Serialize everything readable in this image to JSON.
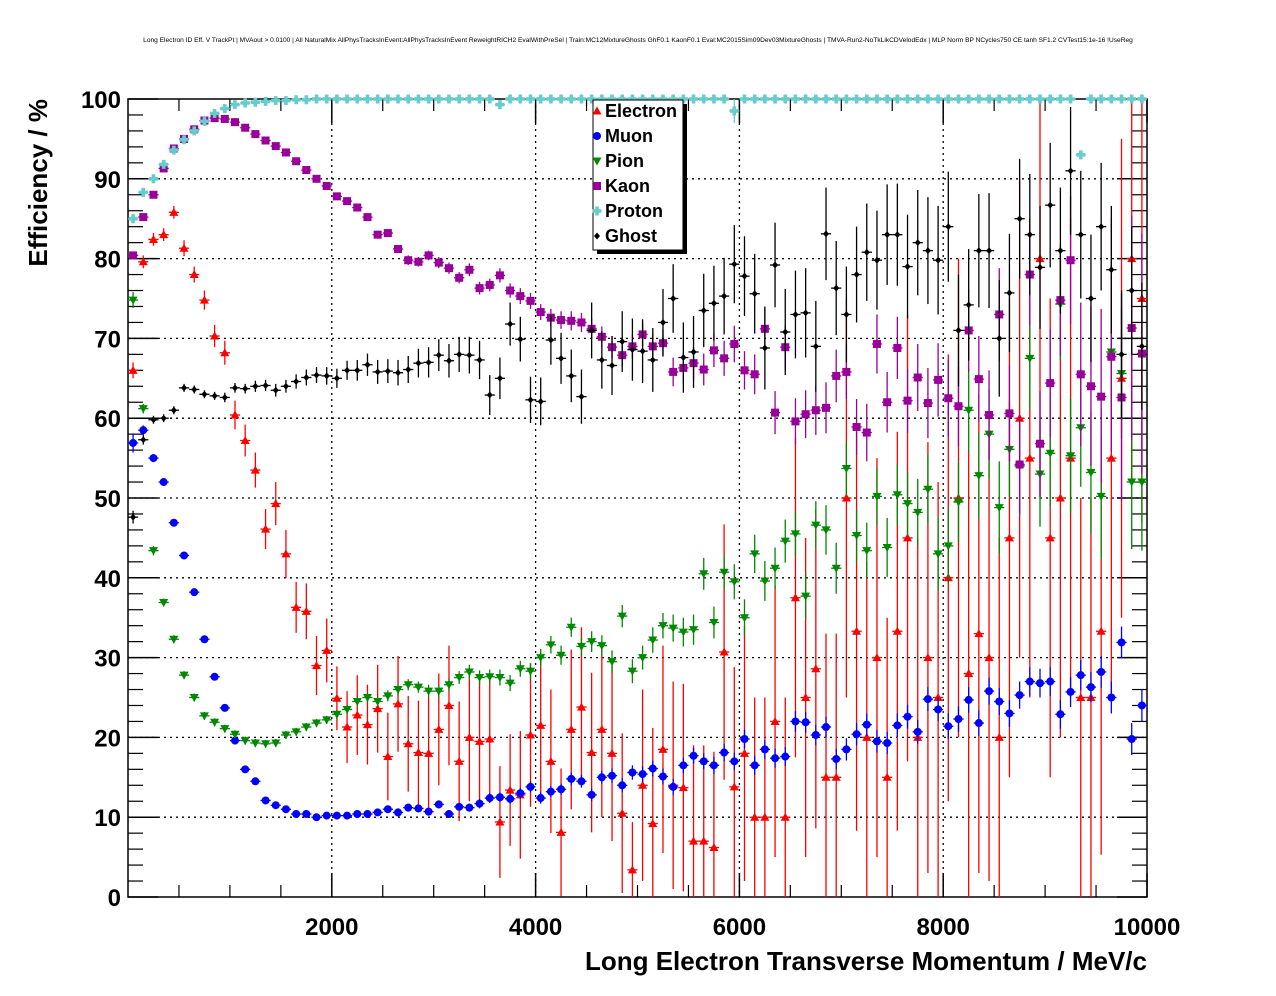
{
  "chart_data": {
    "type": "scatter",
    "title": "Long Electron ID Eff. V TrackPt | MVAout > 0.0100 | All NaturalMix AllPhysTracksInEvent:AllPhysTracksInEvent ReweightRICH2 EvalWithPreSel | Train:MC12MixtureGhosts GhF0.1 KaonF0.1 Eval:MC2015Sim09Dev03MixtureGhosts | TMVA-Run2-NoTkLikCDVelodEdx | MLP Norm BP NCycles750 CE tanh SF1.2 CVTest15:1e-16 !UseReg",
    "xlabel": "Long Electron Transverse Momentum / MeV/c",
    "ylabel": "Efficiency / %",
    "xlim": [
      0,
      10000
    ],
    "ylim": [
      0,
      100
    ],
    "xticks": [
      2000,
      4000,
      6000,
      8000,
      10000
    ],
    "xtick_labels": [
      "2000",
      "4000",
      "6000",
      "8000",
      "10000"
    ],
    "yticks": [
      0,
      10,
      20,
      30,
      40,
      50,
      60,
      70,
      80,
      90,
      100
    ],
    "ytick_labels": [
      "0",
      "10",
      "20",
      "30",
      "40",
      "50",
      "60",
      "70",
      "80",
      "90",
      "100"
    ],
    "grid": true,
    "legend_position": "top-center",
    "bin_width": 100,
    "x_start": 50,
    "series": [
      {
        "name": "Electron",
        "color": "#ff0000",
        "marker": "triangle-up",
        "values": [
          66,
          79.6,
          82.4,
          83,
          85.8,
          81.3,
          78,
          74.8,
          70.3,
          68.2,
          60.4,
          57.2,
          53.5,
          46.1,
          49.3,
          43,
          36.3,
          35.8,
          29,
          30.9,
          24.9,
          21.3,
          22.8,
          21.6,
          23.6,
          17.6,
          24.2,
          19.2,
          18.1,
          18,
          21,
          24,
          17,
          20,
          19.5,
          19.8,
          9.4,
          13.4,
          12.8,
          20.3,
          21.5,
          17,
          8.1,
          21,
          23.8,
          18.1,
          21,
          18,
          10.5,
          3.4,
          14,
          9.2,
          18.5,
          14,
          13.7,
          7,
          7,
          6.2,
          30.7,
          13.8,
          18,
          10,
          10,
          22,
          10,
          37.5,
          25,
          28.6,
          15,
          15,
          50,
          33.3,
          20,
          30,
          15,
          33.3,
          45,
          20,
          30,
          25,
          40,
          50,
          28,
          33,
          30,
          20,
          45,
          60,
          55,
          80,
          45,
          50,
          55,
          25,
          25,
          33.3,
          55,
          65,
          80,
          75
        ],
        "errors": [
          1,
          0.8,
          0.8,
          0.8,
          0.8,
          1,
          1,
          1.2,
          1.4,
          1.5,
          1.8,
          2,
          2.2,
          2.5,
          2.7,
          3,
          3.2,
          3.5,
          3.7,
          4,
          4,
          4.5,
          5,
          5,
          5.5,
          5.5,
          6,
          6,
          6.5,
          7,
          7,
          7.5,
          7.5,
          8,
          8,
          8,
          7,
          7,
          8,
          9,
          9,
          9,
          8,
          10,
          10,
          10,
          11,
          11,
          10,
          6,
          12,
          12,
          13,
          13,
          13,
          12,
          12,
          12,
          16,
          15,
          16,
          15,
          15,
          17,
          15,
          20,
          20,
          20,
          18,
          18,
          25,
          25,
          22,
          25,
          20,
          25,
          28,
          25,
          27,
          27,
          28,
          30,
          28,
          30,
          28,
          25,
          30,
          30,
          30,
          30,
          30,
          30,
          30,
          25,
          25,
          28,
          30,
          30,
          28,
          28
        ]
      },
      {
        "name": "Muon",
        "color": "#0000ff",
        "marker": "circle",
        "values": [
          56.9,
          58.5,
          55,
          52,
          46.9,
          42.8,
          38.2,
          32.3,
          27.6,
          23.7,
          19.6,
          16,
          14.5,
          12.1,
          11.5,
          11,
          10.4,
          10.4,
          10,
          10.2,
          10.2,
          10.2,
          10.4,
          10.4,
          10.6,
          11,
          10.6,
          11.2,
          11.1,
          10.7,
          11.6,
          10.4,
          11.3,
          11.2,
          11.7,
          12.4,
          12.5,
          12.3,
          13,
          13.8,
          12.4,
          13.2,
          13.5,
          14.8,
          14.5,
          12.8,
          15,
          15.2,
          14,
          15.6,
          15.4,
          16.1,
          15.1,
          13.8,
          16.5,
          17.7,
          17,
          16.5,
          18.1,
          17,
          19.8,
          16.5,
          18.5,
          17.4,
          17.6,
          22,
          21.9,
          20.3,
          21.3,
          17.3,
          18.5,
          20.4,
          21.6,
          19.5,
          19.3,
          21.5,
          22.6,
          20.7,
          24.8,
          23.5,
          21.4,
          22.3,
          24.7,
          21.8,
          25.8,
          24.5,
          23,
          25.3,
          27,
          26.8,
          27,
          22.9,
          25.7,
          27.8,
          26.3,
          28.2,
          25,
          31.9,
          19.8,
          24
        ],
        "errors": [
          1.2,
          0.6,
          0.5,
          0.5,
          0.4,
          0.4,
          0.4,
          0.4,
          0.4,
          0.4,
          0.4,
          0.4,
          0.4,
          0.4,
          0.4,
          0.4,
          0.4,
          0.4,
          0.4,
          0.4,
          0.4,
          0.4,
          0.4,
          0.4,
          0.4,
          0.4,
          0.5,
          0.5,
          0.5,
          0.5,
          0.5,
          0.5,
          0.5,
          0.5,
          0.6,
          0.6,
          0.6,
          0.6,
          0.7,
          0.7,
          0.7,
          0.7,
          0.7,
          0.8,
          0.8,
          0.8,
          0.8,
          0.9,
          0.9,
          0.9,
          1,
          1,
          1,
          1,
          1,
          1,
          1,
          1.1,
          1.1,
          1.1,
          1.2,
          1.2,
          1.2,
          1.2,
          1.2,
          1.3,
          1.3,
          1.3,
          1.3,
          1.3,
          1.4,
          1.4,
          1.4,
          1.4,
          1.4,
          1.5,
          1.5,
          1.5,
          1.5,
          1.5,
          1.6,
          1.6,
          1.6,
          1.6,
          1.7,
          1.7,
          1.7,
          1.7,
          1.8,
          1.8,
          1.8,
          1.8,
          1.9,
          1.9,
          1.9,
          2,
          2,
          2,
          2,
          2
        ]
      },
      {
        "name": "Pion",
        "color": "#008800",
        "marker": "triangle-down",
        "values": [
          74.8,
          61.2,
          43.4,
          36.9,
          32.3,
          27.8,
          25,
          22.7,
          21.9,
          21.1,
          20.4,
          19.6,
          19.3,
          19.2,
          19.3,
          20.3,
          20.7,
          21.3,
          21.8,
          22.2,
          22.9,
          23.5,
          24.5,
          25,
          24.5,
          25.2,
          26,
          26.6,
          26.3,
          25.8,
          25.8,
          26.6,
          27.5,
          28.2,
          27.5,
          27.6,
          27.5,
          26.8,
          28.6,
          28.3,
          30,
          31.6,
          30.3,
          33.8,
          31.4,
          32,
          31.5,
          29.5,
          35.2,
          28.3,
          30,
          32.2,
          34,
          33.7,
          33.2,
          33.5,
          40.5,
          34.4,
          40.7,
          39.5,
          35,
          43,
          39.6,
          41.2,
          44.6,
          45.5,
          37.7,
          46.6,
          46,
          41.2,
          53.7,
          45.3,
          43.4,
          50.2,
          43.8,
          50.4,
          49.3,
          48.2,
          51.1,
          43,
          44,
          49.5,
          61,
          52.8,
          58,
          48.8,
          56.1,
          54,
          67.5,
          53,
          55.6,
          74.3,
          55.3,
          58.8,
          53.2,
          50.2,
          68.3,
          65.6,
          52,
          52
        ],
        "errors": [
          1,
          0.6,
          0.6,
          0.5,
          0.5,
          0.5,
          0.5,
          0.5,
          0.5,
          0.5,
          0.5,
          0.5,
          0.5,
          0.5,
          0.5,
          0.5,
          0.5,
          0.5,
          0.5,
          0.5,
          0.6,
          0.6,
          0.6,
          0.6,
          0.6,
          0.7,
          0.7,
          0.7,
          0.7,
          0.8,
          0.8,
          0.8,
          0.8,
          0.9,
          0.9,
          0.9,
          1,
          1,
          1,
          1,
          1.1,
          1.1,
          1.2,
          1.2,
          1.2,
          1.3,
          1.3,
          1.4,
          1.4,
          1.5,
          1.5,
          1.6,
          1.6,
          1.7,
          1.8,
          1.9,
          2,
          2,
          2.1,
          2.2,
          2.3,
          2.4,
          2.5,
          2.6,
          2.7,
          2.8,
          2.9,
          3,
          3.1,
          3.2,
          3.3,
          3.4,
          3.5,
          3.6,
          3.7,
          3.8,
          4,
          4.2,
          4.4,
          4.6,
          4.8,
          5,
          5.2,
          5.4,
          5.6,
          5.8,
          6,
          6.2,
          6.4,
          6.6,
          6.8,
          7,
          7.2,
          7.4,
          7.6,
          7.8,
          8,
          8.2,
          8.4,
          8.6
        ]
      },
      {
        "name": "Kaon",
        "color": "#990099",
        "marker": "square",
        "values": [
          80.4,
          85.2,
          88,
          91.3,
          93.8,
          95,
          96.2,
          97.3,
          97.6,
          97.5,
          97.1,
          96.4,
          95.6,
          94.8,
          94.1,
          93.3,
          92.2,
          91.1,
          90,
          89.1,
          87.8,
          87.2,
          86.4,
          85.2,
          83,
          83.2,
          81.2,
          79.8,
          79.6,
          80.4,
          79.5,
          78.8,
          77.6,
          78.6,
          76.3,
          76.7,
          77.9,
          76,
          75.3,
          74.7,
          73.3,
          72.6,
          72.3,
          72.2,
          72,
          71.2,
          70.2,
          68.9,
          67.9,
          69,
          70.5,
          69,
          69.4,
          65.8,
          66.3,
          66.9,
          66.1,
          68.5,
          67.5,
          69.3,
          66,
          65.5,
          71.2,
          60.7,
          68.9,
          59.6,
          60.5,
          61,
          61.3,
          65.3,
          65.8,
          58.9,
          58.2,
          69.3,
          62,
          68.8,
          62.2,
          65.1,
          61.9,
          64.8,
          62.5,
          61.5,
          71,
          64.9,
          60.4,
          73,
          60.6,
          54.2,
          78,
          56.8,
          64.4,
          74.8,
          79.8,
          65.5,
          64,
          62.7,
          67.7,
          62.6,
          71.3,
          68.1
        ],
        "errors": [
          0.5,
          0.4,
          0.3,
          0.3,
          0.3,
          0.2,
          0.2,
          0.2,
          0.2,
          0.2,
          0.2,
          0.2,
          0.2,
          0.2,
          0.2,
          0.3,
          0.3,
          0.3,
          0.3,
          0.3,
          0.4,
          0.4,
          0.4,
          0.4,
          0.5,
          0.5,
          0.5,
          0.6,
          0.6,
          0.6,
          0.7,
          0.7,
          0.7,
          0.8,
          0.8,
          0.8,
          0.9,
          0.9,
          1,
          1,
          1,
          1.1,
          1.1,
          1.2,
          1.2,
          1.3,
          1.3,
          1.4,
          1.4,
          1.5,
          1.5,
          1.6,
          1.7,
          1.8,
          1.9,
          2,
          2,
          2.1,
          2.2,
          2.3,
          2.4,
          2.5,
          2.6,
          2.7,
          2.8,
          2.9,
          3,
          3.1,
          3.2,
          3.3,
          3.4,
          3.5,
          3.6,
          3.7,
          3.8,
          3.9,
          4,
          4.2,
          4.4,
          4.6,
          4.8,
          5,
          5.2,
          5.4,
          5.6,
          5.8,
          6,
          6.2,
          6.4,
          6.6,
          6.8,
          7,
          8,
          9,
          10,
          11,
          12,
          13,
          14,
          15
        ]
      },
      {
        "name": "Proton",
        "color": "#66cccc",
        "marker": "cross",
        "values": [
          85,
          88.3,
          90,
          91.8,
          93.6,
          94.9,
          96,
          97.2,
          98.2,
          98.8,
          99.3,
          99.5,
          99.6,
          99.7,
          99.8,
          99.8,
          99.9,
          99.9,
          100,
          100,
          100,
          100,
          100,
          100,
          100,
          100,
          100,
          100,
          100,
          100,
          100,
          100,
          100,
          100,
          100,
          100,
          99.3,
          100,
          100,
          100,
          100,
          100,
          100,
          100,
          100,
          100,
          100,
          100,
          100,
          100,
          100,
          100,
          100,
          100,
          100,
          100,
          100,
          100,
          100,
          98.5,
          100,
          100,
          100,
          100,
          100,
          100,
          100,
          100,
          100,
          100,
          100,
          100,
          100,
          100,
          100,
          100,
          100,
          100,
          100,
          100,
          100,
          100,
          100,
          100,
          100,
          100,
          100,
          100,
          100,
          100,
          100,
          100,
          100,
          93,
          100,
          100,
          100,
          100,
          100,
          100
        ],
        "errors": [
          0.6,
          0.4,
          0.3,
          0.3,
          0.2,
          0.2,
          0.2,
          0.1,
          0.1,
          0.1,
          0.1,
          0.1,
          0.1,
          0.1,
          0.1,
          0.1,
          0.1,
          0.1,
          0,
          0,
          0,
          0,
          0,
          0,
          0,
          0,
          0,
          0,
          0,
          0,
          0,
          0,
          0,
          0,
          0,
          0,
          0.5,
          0,
          0,
          0,
          0,
          0,
          0,
          0,
          0,
          0,
          0,
          0,
          0,
          0,
          0,
          0,
          0,
          0,
          0,
          0,
          0,
          0,
          0,
          1.5,
          0,
          0,
          0,
          0,
          0,
          0,
          0,
          0,
          0,
          0,
          0,
          0,
          0,
          0,
          0,
          0,
          0,
          0,
          0,
          0,
          0,
          0,
          0,
          0,
          0,
          0,
          0,
          0,
          0,
          0,
          0,
          0,
          0,
          0,
          0,
          0,
          0,
          0,
          0,
          0
        ]
      },
      {
        "name": "Ghost",
        "color": "#000000",
        "marker": "diamond",
        "values": [
          47.6,
          57.3,
          59.8,
          60,
          61,
          63.8,
          63.6,
          63,
          62.8,
          62.6,
          63.8,
          63.7,
          64,
          64.1,
          63.5,
          64,
          64.6,
          65.1,
          65.4,
          65.3,
          65,
          66,
          66,
          66.7,
          65.8,
          65.9,
          65.7,
          66.1,
          66.9,
          67,
          67.9,
          67.2,
          68,
          67.9,
          67.3,
          62.9,
          65,
          71.8,
          69.9,
          62.3,
          62.1,
          69.8,
          67.5,
          65.3,
          62.7,
          71,
          67.3,
          66.6,
          69.6,
          68.6,
          68.4,
          67.3,
          72,
          75,
          67.6,
          68.3,
          73.5,
          74.4,
          75.3,
          79.3,
          77.8,
          75.6,
          68.8,
          79.2,
          70.8,
          73,
          73.2,
          69,
          83.1,
          76.3,
          73,
          78,
          80.8,
          79.8,
          83,
          83,
          79,
          82,
          81,
          79.8,
          84,
          71,
          74.2,
          81,
          81,
          70,
          75.7,
          85,
          83,
          78.9,
          86.7,
          81,
          91,
          83,
          75,
          84,
          78.6,
          68,
          76,
          69
        ],
        "errors": [
          0.8,
          0.6,
          0.5,
          0.5,
          0.5,
          0.5,
          0.5,
          0.5,
          0.5,
          0.6,
          0.6,
          0.6,
          0.7,
          0.7,
          0.8,
          0.8,
          0.9,
          1,
          1,
          1.1,
          1.2,
          1.2,
          1.3,
          1.4,
          1.5,
          1.5,
          1.6,
          1.7,
          1.8,
          1.9,
          2,
          2.1,
          2.2,
          2.3,
          2.4,
          2.5,
          2.6,
          2.7,
          2.8,
          2.9,
          3,
          3.1,
          3.2,
          3.3,
          3.4,
          3.5,
          3.6,
          3.7,
          3.8,
          3.9,
          4,
          4,
          4.2,
          4.3,
          4.4,
          4.5,
          4.6,
          4.7,
          4.8,
          4.9,
          5,
          5,
          5.2,
          5.3,
          5.4,
          5.5,
          5.6,
          5.7,
          5.8,
          5.9,
          6,
          6,
          6.1,
          6.2,
          6.3,
          6.4,
          6.5,
          6.6,
          6.7,
          6.8,
          6.9,
          7,
          7,
          7.1,
          7.2,
          7.3,
          7.4,
          7.5,
          7.6,
          7.7,
          7.8,
          7.9,
          8,
          8,
          8,
          8,
          8,
          8,
          8,
          8
        ]
      }
    ]
  }
}
